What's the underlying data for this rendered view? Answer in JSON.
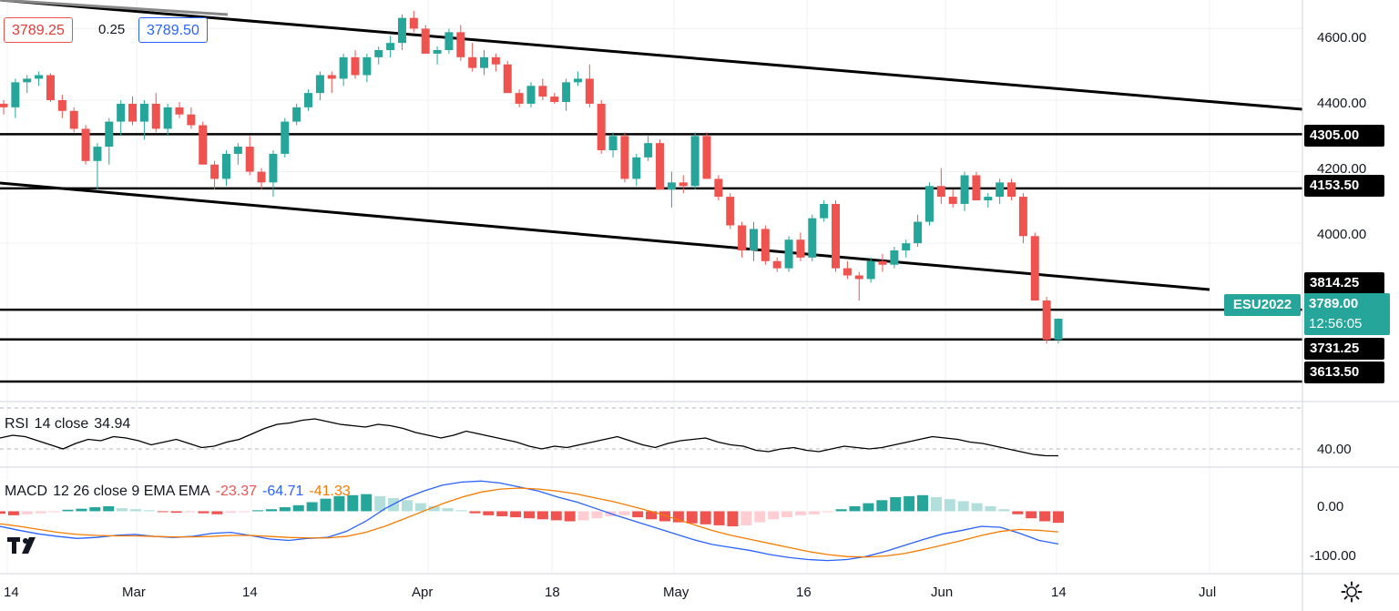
{
  "header": {
    "bid": "3789.25",
    "spread": "0.25",
    "ask": "3789.50"
  },
  "symbol": "ESU2022",
  "current_price": "3789.00",
  "countdown": "12:56:05",
  "price_axis": {
    "ticks": [
      "4600.00",
      "4400.00",
      "4200.00",
      "4000.00"
    ],
    "levels": [
      "4305.00",
      "4153.50",
      "3814.25",
      "3731.25",
      "3613.50"
    ]
  },
  "rsi": {
    "name": "RSI",
    "params": "14 close",
    "value": "34.94",
    "tick": "40.00"
  },
  "macd": {
    "name": "MACD",
    "params": "12 26 close 9 EMA EMA",
    "hist_value": "-23.37",
    "macd_value": "-64.71",
    "signal_value": "-41.33",
    "ticks": [
      "0.00",
      "-100.00"
    ]
  },
  "time_axis": [
    "14",
    "Mar",
    "14",
    "Apr",
    "18",
    "May",
    "16",
    "Jun",
    "14",
    "Jul"
  ],
  "colors": {
    "up": "#26a69a",
    "down": "#ef5350",
    "macd_line": "#2962ff",
    "signal_line": "#f57c00",
    "hist_up_strong": "#26a69a",
    "hist_up_weak": "#b2dfdb",
    "hist_down_strong": "#ef5350",
    "hist_down_weak": "#ffcdd2",
    "line": "#000000"
  },
  "icons": [
    "tradingview-logo-icon",
    "settings-gear-icon"
  ],
  "chart_data": [
    {
      "type": "candlestick",
      "symbol": "ESU2022",
      "y_range": [
        3560,
        4680
      ],
      "y_ticks": [
        4000,
        4200,
        4400,
        4600
      ],
      "x_labels": [
        "14",
        "Mar",
        "14",
        "Apr",
        "18",
        "May",
        "16",
        "Jun",
        "14",
        "Jul"
      ],
      "horizontal_levels": [
        4305.0,
        4153.5,
        3814.25,
        3731.25,
        3613.5
      ],
      "ohlc": [
        [
          4390,
          4400,
          4360,
          4380
        ],
        [
          4380,
          4460,
          4350,
          4450
        ],
        [
          4450,
          4470,
          4420,
          4460
        ],
        [
          4460,
          4480,
          4440,
          4470
        ],
        [
          4470,
          4475,
          4395,
          4400
        ],
        [
          4400,
          4415,
          4350,
          4370
        ],
        [
          4370,
          4380,
          4310,
          4320
        ],
        [
          4320,
          4330,
          4220,
          4230
        ],
        [
          4230,
          4280,
          4150,
          4270
        ],
        [
          4270,
          4350,
          4220,
          4340
        ],
        [
          4340,
          4400,
          4300,
          4390
        ],
        [
          4390,
          4410,
          4330,
          4340
        ],
        [
          4340,
          4400,
          4290,
          4390
        ],
        [
          4390,
          4420,
          4310,
          4320
        ],
        [
          4320,
          4390,
          4300,
          4380
        ],
        [
          4380,
          4395,
          4350,
          4360
        ],
        [
          4360,
          4380,
          4320,
          4330
        ],
        [
          4330,
          4340,
          4220,
          4220
        ],
        [
          4220,
          4230,
          4150,
          4180
        ],
        [
          4180,
          4260,
          4160,
          4250
        ],
        [
          4250,
          4280,
          4220,
          4270
        ],
        [
          4270,
          4300,
          4190,
          4200
        ],
        [
          4200,
          4210,
          4150,
          4170
        ],
        [
          4170,
          4260,
          4130,
          4250
        ],
        [
          4250,
          4350,
          4240,
          4340
        ],
        [
          4340,
          4390,
          4330,
          4380
        ],
        [
          4380,
          4430,
          4370,
          4420
        ],
        [
          4420,
          4480,
          4400,
          4470
        ],
        [
          4470,
          4480,
          4420,
          4460
        ],
        [
          4460,
          4530,
          4440,
          4520
        ],
        [
          4520,
          4540,
          4460,
          4470
        ],
        [
          4470,
          4530,
          4450,
          4520
        ],
        [
          4520,
          4550,
          4500,
          4540
        ],
        [
          4540,
          4580,
          4520,
          4560
        ],
        [
          4560,
          4640,
          4540,
          4630
        ],
        [
          4630,
          4650,
          4590,
          4600
        ],
        [
          4600,
          4610,
          4530,
          4530
        ],
        [
          4530,
          4550,
          4500,
          4540
        ],
        [
          4540,
          4600,
          4530,
          4590
        ],
        [
          4590,
          4610,
          4510,
          4520
        ],
        [
          4520,
          4560,
          4480,
          4490
        ],
        [
          4490,
          4540,
          4470,
          4520
        ],
        [
          4520,
          4530,
          4480,
          4500
        ],
        [
          4500,
          4510,
          4420,
          4420
        ],
        [
          4420,
          4430,
          4380,
          4390
        ],
        [
          4390,
          4450,
          4380,
          4440
        ],
        [
          4440,
          4460,
          4400,
          4410
        ],
        [
          4410,
          4420,
          4390,
          4395
        ],
        [
          4395,
          4460,
          4370,
          4450
        ],
        [
          4450,
          4480,
          4440,
          4460
        ],
        [
          4460,
          4500,
          4380,
          4390
        ],
        [
          4390,
          4400,
          4250,
          4260
        ],
        [
          4260,
          4310,
          4240,
          4300
        ],
        [
          4300,
          4310,
          4170,
          4180
        ],
        [
          4180,
          4250,
          4160,
          4240
        ],
        [
          4240,
          4300,
          4230,
          4280
        ],
        [
          4280,
          4290,
          4150,
          4150
        ],
        [
          4150,
          4200,
          4100,
          4170
        ],
        [
          4170,
          4190,
          4140,
          4160
        ],
        [
          4160,
          4310,
          4150,
          4300
        ],
        [
          4300,
          4310,
          4180,
          4180
        ],
        [
          4180,
          4190,
          4120,
          4130
        ],
        [
          4130,
          4140,
          4040,
          4050
        ],
        [
          4050,
          4060,
          3960,
          3980
        ],
        [
          3980,
          4060,
          3950,
          4040
        ],
        [
          4040,
          4050,
          3940,
          3950
        ],
        [
          3950,
          3960,
          3920,
          3930
        ],
        [
          3930,
          4020,
          3920,
          4010
        ],
        [
          4010,
          4030,
          3950,
          3960
        ],
        [
          3960,
          4080,
          3950,
          4070
        ],
        [
          4070,
          4120,
          4060,
          4110
        ],
        [
          4110,
          4120,
          3920,
          3930
        ],
        [
          3930,
          3950,
          3900,
          3910
        ],
        [
          3910,
          3920,
          3840,
          3900
        ],
        [
          3900,
          3960,
          3890,
          3950
        ],
        [
          3950,
          3970,
          3920,
          3940
        ],
        [
          3940,
          3990,
          3930,
          3980
        ],
        [
          3980,
          4010,
          3960,
          4000
        ],
        [
          4000,
          4080,
          3990,
          4060
        ],
        [
          4060,
          4170,
          4050,
          4160
        ],
        [
          4160,
          4210,
          4110,
          4130
        ],
        [
          4130,
          4150,
          4100,
          4110
        ],
        [
          4110,
          4200,
          4090,
          4190
        ],
        [
          4190,
          4200,
          4120,
          4120
        ],
        [
          4120,
          4140,
          4100,
          4130
        ],
        [
          4130,
          4180,
          4110,
          4170
        ],
        [
          4170,
          4180,
          4120,
          4130
        ],
        [
          4130,
          4140,
          4000,
          4020
        ],
        [
          4020,
          4030,
          3840,
          3840
        ],
        [
          3840,
          3850,
          3720,
          3730
        ],
        [
          3730,
          3790,
          3720,
          3789
        ]
      ]
    },
    {
      "type": "line",
      "name": "RSI 14 close",
      "last_value": 34.94,
      "y_ticks": [
        40
      ],
      "values": [
        48,
        50,
        49,
        46,
        43,
        40,
        44,
        47,
        46,
        49,
        48,
        46,
        43,
        45,
        47,
        44,
        41,
        42,
        45,
        47,
        51,
        55,
        58,
        59,
        61,
        62,
        60,
        58,
        57,
        56,
        58,
        57,
        55,
        52,
        50,
        48,
        50,
        53,
        51,
        49,
        47,
        45,
        42,
        40,
        42,
        41,
        43,
        45,
        47,
        49,
        46,
        43,
        41,
        44,
        46,
        47,
        48,
        45,
        43,
        42,
        39,
        38,
        40,
        41,
        39,
        38,
        40,
        42,
        41,
        40,
        41,
        43,
        45,
        47,
        49,
        48,
        47,
        45,
        44,
        42,
        40,
        38,
        36,
        35,
        35
      ]
    },
    {
      "type": "bar",
      "name": "MACD histogram",
      "last_value": -23.37,
      "y_ticks": [
        0,
        -100
      ],
      "values": [
        -5,
        -8,
        -6,
        -4,
        -2,
        3,
        5,
        8,
        10,
        6,
        4,
        2,
        -1,
        -3,
        -2,
        -4,
        -6,
        -3,
        -1,
        2,
        4,
        8,
        12,
        18,
        25,
        30,
        32,
        34,
        30,
        26,
        22,
        16,
        10,
        6,
        2,
        -4,
        -8,
        -10,
        -12,
        -14,
        -16,
        -18,
        -20,
        -18,
        -14,
        -10,
        -8,
        -12,
        -16,
        -20,
        -22,
        -24,
        -26,
        -28,
        -30,
        -28,
        -22,
        -16,
        -12,
        -8,
        -6,
        -2,
        4,
        10,
        16,
        22,
        28,
        30,
        32,
        28,
        24,
        20,
        16,
        10,
        4,
        -6,
        -14,
        -20,
        -23
      ]
    },
    {
      "type": "line",
      "name": "MACD",
      "last_value": -64.71,
      "values": [
        -30,
        -38,
        -45,
        -50,
        -54,
        -52,
        -48,
        -46,
        -50,
        -52,
        -50,
        -44,
        -42,
        -48,
        -55,
        -58,
        -54,
        -52,
        -40,
        -20,
        5,
        25,
        40,
        52,
        58,
        60,
        56,
        48,
        40,
        28,
        18,
        5,
        -8,
        -20,
        -32,
        -44,
        -56,
        -66,
        -72,
        -78,
        -86,
        -92,
        -96,
        -98,
        -96,
        -90,
        -80,
        -68,
        -56,
        -45,
        -38,
        -30,
        -32,
        -44,
        -58,
        -65
      ]
    },
    {
      "type": "line",
      "name": "Signal",
      "last_value": -41.33,
      "values": [
        -25,
        -30,
        -36,
        -42,
        -46,
        -48,
        -49,
        -49,
        -50,
        -51,
        -51,
        -50,
        -48,
        -48,
        -50,
        -52,
        -53,
        -53,
        -50,
        -42,
        -30,
        -15,
        0,
        15,
        28,
        38,
        44,
        46,
        44,
        40,
        34,
        26,
        18,
        8,
        -2,
        -14,
        -26,
        -38,
        -48,
        -56,
        -64,
        -72,
        -80,
        -86,
        -90,
        -91,
        -89,
        -84,
        -76,
        -67,
        -58,
        -48,
        -40,
        -36,
        -38,
        -41
      ]
    }
  ]
}
